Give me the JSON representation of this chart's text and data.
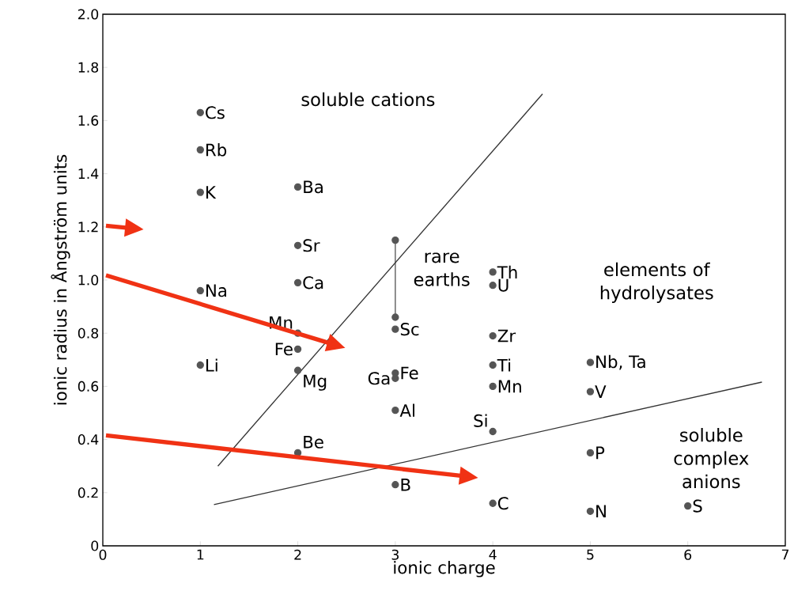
{
  "chart_data": {
    "type": "scatter",
    "xlabel": "ionic charge",
    "ylabel": "ionic radius in Ångström units",
    "xlim": [
      0,
      7
    ],
    "ylim": [
      0,
      2.0
    ],
    "xticks": [
      0,
      1,
      2,
      3,
      4,
      5,
      6,
      7
    ],
    "yticks": [
      0,
      0.2,
      0.4,
      0.6,
      0.8,
      {
        "value": 1.0,
        "label": "1.0"
      },
      1.2,
      1.4,
      1.6,
      1.8,
      {
        "value": 2.0,
        "label": "2.0"
      }
    ],
    "grid": false,
    "marker": "circle",
    "series": [
      {
        "color": "#555555",
        "x": [
          1,
          1,
          1,
          1,
          1,
          2,
          2,
          2,
          2,
          2,
          2,
          2,
          3,
          3,
          3,
          3,
          3,
          4,
          4,
          4,
          4,
          4,
          4,
          4,
          5,
          5,
          5,
          5,
          6
        ],
        "values": [
          1.63,
          1.49,
          1.33,
          0.96,
          0.68,
          1.35,
          1.13,
          0.99,
          0.8,
          0.74,
          0.66,
          0.35,
          0.815,
          0.65,
          0.63,
          0.51,
          0.23,
          1.03,
          0.98,
          0.79,
          0.68,
          0.6,
          0.43,
          0.16,
          0.69,
          0.58,
          0.35,
          0.13,
          0.15
        ],
        "value_labels": [
          "Cs",
          "Rb",
          "K",
          "Na",
          "Li",
          "Ba",
          "Sr",
          "Ca",
          "Mn",
          "Fe",
          "Mg",
          "Be",
          "Sc",
          "Fe",
          "Ga",
          "Al",
          "B",
          "Th",
          "U",
          "Zr",
          "Ti",
          "Mn",
          "Si",
          "C",
          "Nb, Ta",
          "V",
          "P",
          "N",
          "S"
        ]
      },
      {
        "type": "line",
        "color": "#555555",
        "x": [
          3,
          3
        ],
        "values": [
          1.15,
          0.86
        ],
        "marker": "circle"
      },
      {
        "type": "line",
        "color": "#333333",
        "x": [
          1.18,
          4.51
        ],
        "values": [
          0.3,
          1.7
        ],
        "marker": "none"
      },
      {
        "type": "line",
        "color": "#333333",
        "x": [
          1.14,
          6.76
        ],
        "values": [
          0.155,
          0.616
        ],
        "marker": "none"
      }
    ],
    "annotations": [
      "soluble cations",
      "rare earths",
      "elements of hydrolysates",
      "soluble complex anions"
    ]
  }
}
